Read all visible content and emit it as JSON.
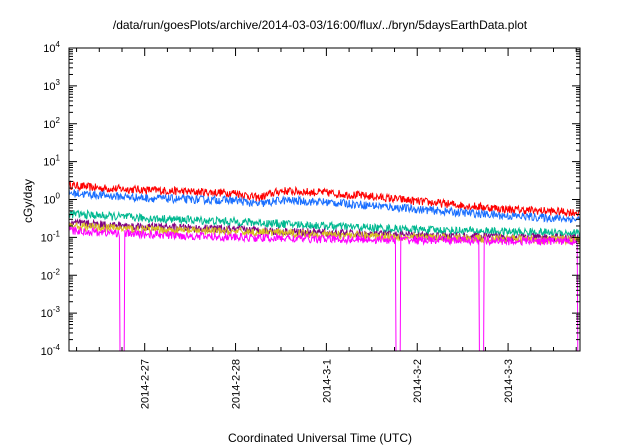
{
  "chart_data": {
    "type": "line",
    "title": "/data/run/goesPlots/archive/2014-03-03/16:00/flux/../bryn/5daysEarthData.plot",
    "xlabel": "Coordinated Universal Time (UTC)",
    "ylabel": "cGy/day",
    "yscale": "log",
    "ylim": [
      0.0001,
      10000
    ],
    "xlim": [
      "2014-02-26T04:00",
      "2014-03-03T19:00"
    ],
    "x_ticks": [
      "2014-2-27",
      "2014-2-28",
      "2014-3-1",
      "2014-3-2",
      "2014-3-3"
    ],
    "y_ticks": [
      {
        "base": "10",
        "exp": "-4"
      },
      {
        "base": "10",
        "exp": "-3"
      },
      {
        "base": "10",
        "exp": "-2"
      },
      {
        "base": "10",
        "exp": "-1"
      },
      {
        "base": "10",
        "exp": "0"
      },
      {
        "base": "10",
        "exp": "1"
      },
      {
        "base": "10",
        "exp": "2"
      },
      {
        "base": "10",
        "exp": "3"
      },
      {
        "base": "10",
        "exp": "4"
      }
    ],
    "grid": false,
    "legend": "none",
    "series": [
      {
        "color": "#ff0000",
        "x": [
          "2014-02-26T04:00",
          "2014-02-26T12:00",
          "2014-02-27T00:00",
          "2014-02-27T12:00",
          "2014-02-28T00:00",
          "2014-02-28T06:00",
          "2014-02-28T12:00",
          "2014-03-01T00:00",
          "2014-03-01T12:00",
          "2014-03-02T00:00",
          "2014-03-02T12:00",
          "2014-03-03T00:00",
          "2014-03-03T19:00"
        ],
        "values": [
          2.4,
          2.0,
          1.8,
          1.6,
          1.5,
          1.1,
          1.7,
          1.5,
          1.2,
          0.9,
          0.7,
          0.55,
          0.45
        ]
      },
      {
        "color": "#1a6fff",
        "x": [
          "2014-02-26T04:00",
          "2014-02-26T12:00",
          "2014-02-27T00:00",
          "2014-02-27T12:00",
          "2014-02-28T00:00",
          "2014-02-28T06:00",
          "2014-02-28T12:00",
          "2014-03-01T00:00",
          "2014-03-01T12:00",
          "2014-03-02T00:00",
          "2014-03-02T12:00",
          "2014-03-03T00:00",
          "2014-03-03T19:00"
        ],
        "values": [
          1.5,
          1.3,
          1.1,
          1.0,
          0.95,
          0.75,
          0.95,
          0.85,
          0.7,
          0.55,
          0.45,
          0.37,
          0.3
        ]
      },
      {
        "color": "#00b890",
        "x": [
          "2014-02-26T04:00",
          "2014-02-27T00:00",
          "2014-02-28T00:00",
          "2014-03-01T00:00",
          "2014-03-02T00:00",
          "2014-03-03T00:00",
          "2014-03-03T19:00"
        ],
        "values": [
          0.42,
          0.32,
          0.26,
          0.2,
          0.16,
          0.14,
          0.13
        ]
      },
      {
        "color": "#800080",
        "x": [
          "2014-02-26T04:00",
          "2014-02-27T00:00",
          "2014-02-28T00:00",
          "2014-03-01T00:00",
          "2014-03-02T00:00",
          "2014-03-03T00:00",
          "2014-03-03T19:00"
        ],
        "values": [
          0.24,
          0.19,
          0.16,
          0.13,
          0.11,
          0.1,
          0.095
        ]
      },
      {
        "color": "#d8c020",
        "x": [
          "2014-02-26T04:00",
          "2014-02-27T00:00",
          "2014-02-28T00:00",
          "2014-03-01T00:00",
          "2014-03-02T00:00",
          "2014-03-03T00:00",
          "2014-03-03T19:00"
        ],
        "values": [
          0.2,
          0.16,
          0.14,
          0.12,
          0.1,
          0.09,
          0.085
        ]
      },
      {
        "color": "#ff00ff",
        "x": [
          "2014-02-26T04:00",
          "2014-02-27T00:00",
          "2014-02-28T00:00",
          "2014-03-01T00:00",
          "2014-03-02T00:00",
          "2014-03-03T00:00",
          "2014-03-03T19:00"
        ],
        "values": [
          0.15,
          0.12,
          0.1,
          0.09,
          0.085,
          0.08,
          0.08
        ],
        "dropouts": [
          "2014-02-26T18:00",
          "2014-03-01T19:00",
          "2014-03-02T17:00",
          "2014-03-03T19:00"
        ]
      }
    ]
  }
}
